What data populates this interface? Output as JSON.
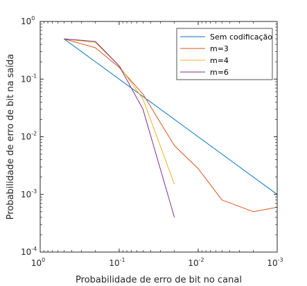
{
  "chart_data": {
    "type": "line",
    "title": "",
    "xlabel": "Probabilidade de erro de bit no canal",
    "ylabel": "Probabilidade de erro de bit na saída",
    "x_scale": "log",
    "y_scale": "log",
    "x_reversed": true,
    "xlim": [
      1,
      0.001
    ],
    "ylim": [
      0.0001,
      1
    ],
    "grid": false,
    "legend_position": "top-right",
    "x_ticks": [
      {
        "value": 1,
        "base": "10",
        "exp": "0"
      },
      {
        "value": 0.1,
        "base": "10",
        "exp": "-1"
      },
      {
        "value": 0.01,
        "base": "10",
        "exp": "-2"
      },
      {
        "value": 0.001,
        "base": "10",
        "exp": "-3"
      }
    ],
    "y_ticks": [
      {
        "value": 1,
        "base": "10",
        "exp": "0"
      },
      {
        "value": 0.1,
        "base": "10",
        "exp": "-1"
      },
      {
        "value": 0.01,
        "base": "10",
        "exp": "-2"
      },
      {
        "value": 0.001,
        "base": "10",
        "exp": "-3"
      },
      {
        "value": 0.0001,
        "base": "10",
        "exp": "-4"
      }
    ],
    "series": [
      {
        "name": "Sem codificação",
        "color": "#0072BD",
        "points": [
          [
            0.5,
            0.5
          ],
          [
            0.001,
            0.001
          ]
        ]
      },
      {
        "name": "m=3",
        "color": "#D95319",
        "points": [
          [
            0.5,
            0.5
          ],
          [
            0.2,
            0.35
          ],
          [
            0.1,
            0.16
          ],
          [
            0.05,
            0.055
          ],
          [
            0.02,
            0.007
          ],
          [
            0.01,
            0.0028
          ],
          [
            0.005,
            0.0008
          ],
          [
            0.002,
            0.0005
          ],
          [
            0.001,
            0.0006
          ]
        ]
      },
      {
        "name": "m=4",
        "color": "#EDB120",
        "points": [
          [
            0.5,
            0.5
          ],
          [
            0.2,
            0.43
          ],
          [
            0.1,
            0.17
          ],
          [
            0.05,
            0.045
          ],
          [
            0.02,
            0.0015
          ]
        ]
      },
      {
        "name": "m=6",
        "color": "#7E2F8E",
        "points": [
          [
            0.5,
            0.5
          ],
          [
            0.2,
            0.45
          ],
          [
            0.1,
            0.17
          ],
          [
            0.05,
            0.03
          ],
          [
            0.02,
            0.0004
          ]
        ]
      }
    ]
  }
}
